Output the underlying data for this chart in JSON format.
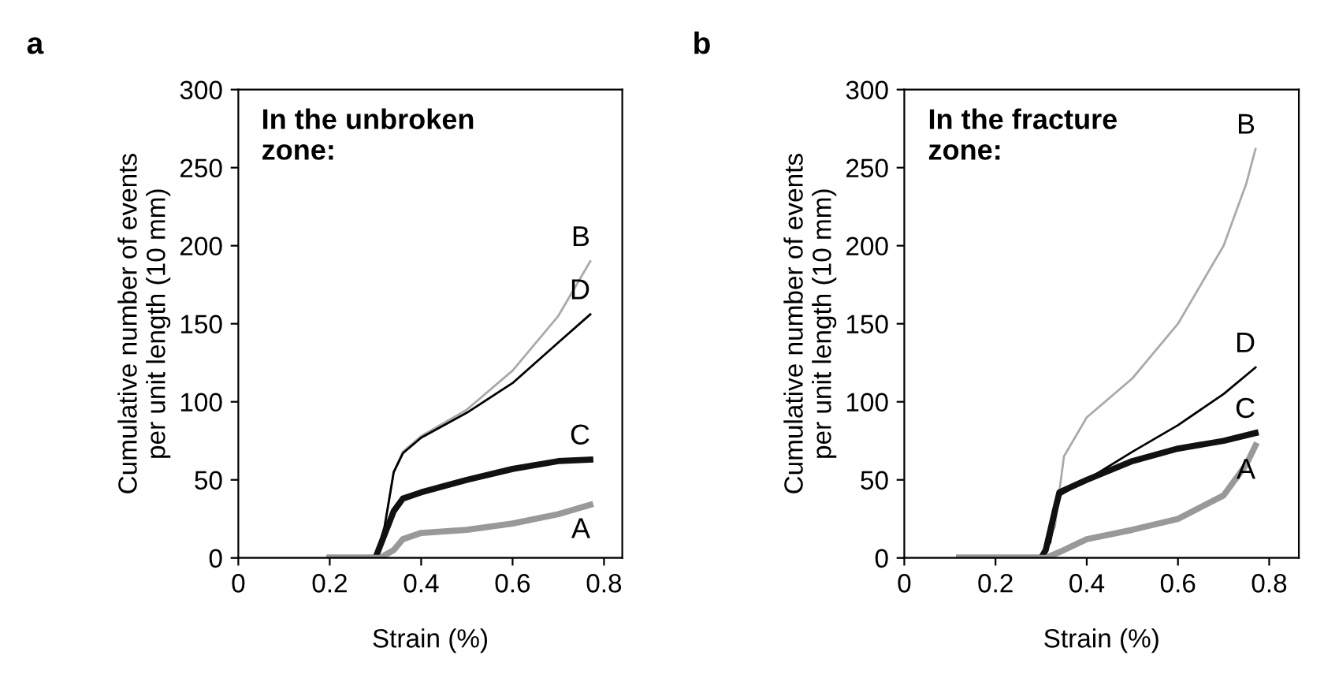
{
  "chart_data": [
    {
      "type": "line",
      "title": "a",
      "xlabel": "Strain (%)",
      "ylabel": "Cumulative number of events\nper unit length (10 mm)",
      "annotations": [
        "In the unbroken\nzone:"
      ],
      "xlim": [
        0,
        0.84
      ],
      "ylim": [
        0,
        300
      ],
      "xticks": [
        0,
        0.2,
        0.4,
        0.6,
        0.8
      ],
      "yticks": [
        0,
        50,
        100,
        150,
        200,
        250,
        300
      ],
      "grid": false,
      "legend": false,
      "marker": "none",
      "line_style": "solid",
      "series": [
        {
          "name": "B",
          "color": "#aaaaaa",
          "x": [
            0.2,
            0.3,
            0.32,
            0.34,
            0.36,
            0.4,
            0.5,
            0.6,
            0.7,
            0.77
          ],
          "values": [
            0,
            0,
            20,
            55,
            68,
            78,
            95,
            120,
            155,
            190
          ]
        },
        {
          "name": "D",
          "color": "#000000",
          "x": [
            0.2,
            0.3,
            0.32,
            0.34,
            0.36,
            0.4,
            0.5,
            0.6,
            0.7,
            0.77
          ],
          "values": [
            0,
            0,
            20,
            55,
            67,
            77,
            93,
            112,
            138,
            156
          ]
        },
        {
          "name": "C",
          "color": "#111111",
          "x": [
            0.2,
            0.3,
            0.32,
            0.34,
            0.36,
            0.4,
            0.5,
            0.6,
            0.7,
            0.77
          ],
          "values": [
            0,
            0,
            15,
            30,
            38,
            42,
            50,
            57,
            62,
            63
          ]
        },
        {
          "name": "A",
          "color": "#999999",
          "x": [
            0.2,
            0.31,
            0.34,
            0.36,
            0.4,
            0.5,
            0.6,
            0.7,
            0.77
          ],
          "values": [
            0,
            0,
            5,
            12,
            16,
            18,
            22,
            28,
            34
          ]
        }
      ]
    },
    {
      "type": "line",
      "title": "b",
      "xlabel": "Strain (%)",
      "ylabel": "Cumulative number of events\nper unit length (10 mm)",
      "annotations": [
        "In the fracture\nzone:"
      ],
      "xlim": [
        0,
        0.865
      ],
      "ylim": [
        0,
        300
      ],
      "xticks": [
        0,
        0.2,
        0.4,
        0.6,
        0.8
      ],
      "yticks": [
        0,
        50,
        100,
        150,
        200,
        250,
        300
      ],
      "grid": false,
      "legend": false,
      "marker": "none",
      "line_style": "solid",
      "series": [
        {
          "name": "B",
          "color": "#aaaaaa",
          "x": [
            0.12,
            0.3,
            0.33,
            0.35,
            0.4,
            0.5,
            0.6,
            0.7,
            0.75,
            0.77
          ],
          "values": [
            0,
            0,
            20,
            65,
            90,
            115,
            150,
            200,
            240,
            262
          ]
        },
        {
          "name": "D",
          "color": "#000000",
          "x": [
            0.12,
            0.3,
            0.32,
            0.34,
            0.4,
            0.5,
            0.6,
            0.7,
            0.77
          ],
          "values": [
            0,
            0,
            10,
            40,
            50,
            68,
            85,
            105,
            122
          ]
        },
        {
          "name": "C",
          "color": "#111111",
          "x": [
            0.12,
            0.3,
            0.31,
            0.33,
            0.34,
            0.4,
            0.5,
            0.6,
            0.7,
            0.77
          ],
          "values": [
            0,
            0,
            5,
            30,
            42,
            50,
            62,
            70,
            75,
            80
          ]
        },
        {
          "name": "A",
          "color": "#999999",
          "x": [
            0.12,
            0.31,
            0.35,
            0.4,
            0.5,
            0.6,
            0.7,
            0.75,
            0.77
          ],
          "values": [
            0,
            0,
            5,
            12,
            18,
            25,
            40,
            60,
            72
          ]
        }
      ]
    }
  ]
}
